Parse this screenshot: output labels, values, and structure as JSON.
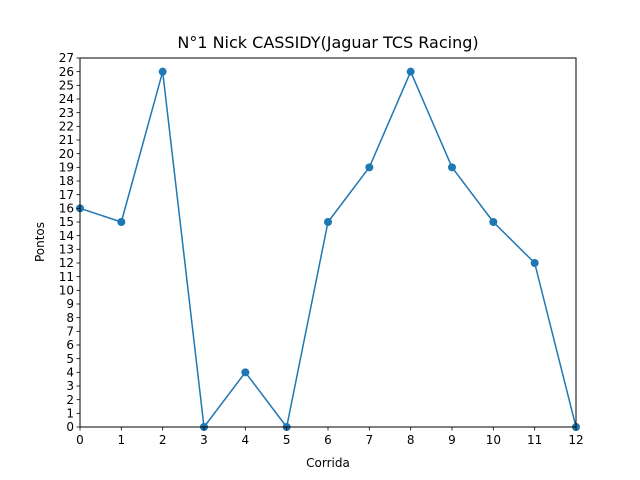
{
  "chart_data": {
    "type": "line",
    "title": "N°1 Nick CASSIDY(Jaguar TCS Racing)",
    "xlabel": "Corrida",
    "ylabel": "Pontos",
    "xlim": [
      0,
      12
    ],
    "ylim": [
      0,
      27
    ],
    "x_ticks": [
      0,
      1,
      2,
      3,
      4,
      5,
      6,
      7,
      8,
      9,
      10,
      11,
      12
    ],
    "y_ticks": [
      0,
      1,
      2,
      3,
      4,
      5,
      6,
      7,
      8,
      9,
      10,
      11,
      12,
      13,
      14,
      15,
      16,
      17,
      18,
      19,
      20,
      21,
      22,
      23,
      24,
      25,
      26,
      27
    ],
    "grid": false,
    "series": [
      {
        "x": [
          0,
          1,
          2,
          3,
          4,
          5,
          6,
          7,
          8,
          9,
          10,
          11,
          12
        ],
        "values": [
          16,
          15,
          26,
          0,
          4,
          0,
          15,
          19,
          26,
          19,
          15,
          12,
          0
        ],
        "color": "#1f77b4",
        "marker": "circle"
      }
    ]
  }
}
